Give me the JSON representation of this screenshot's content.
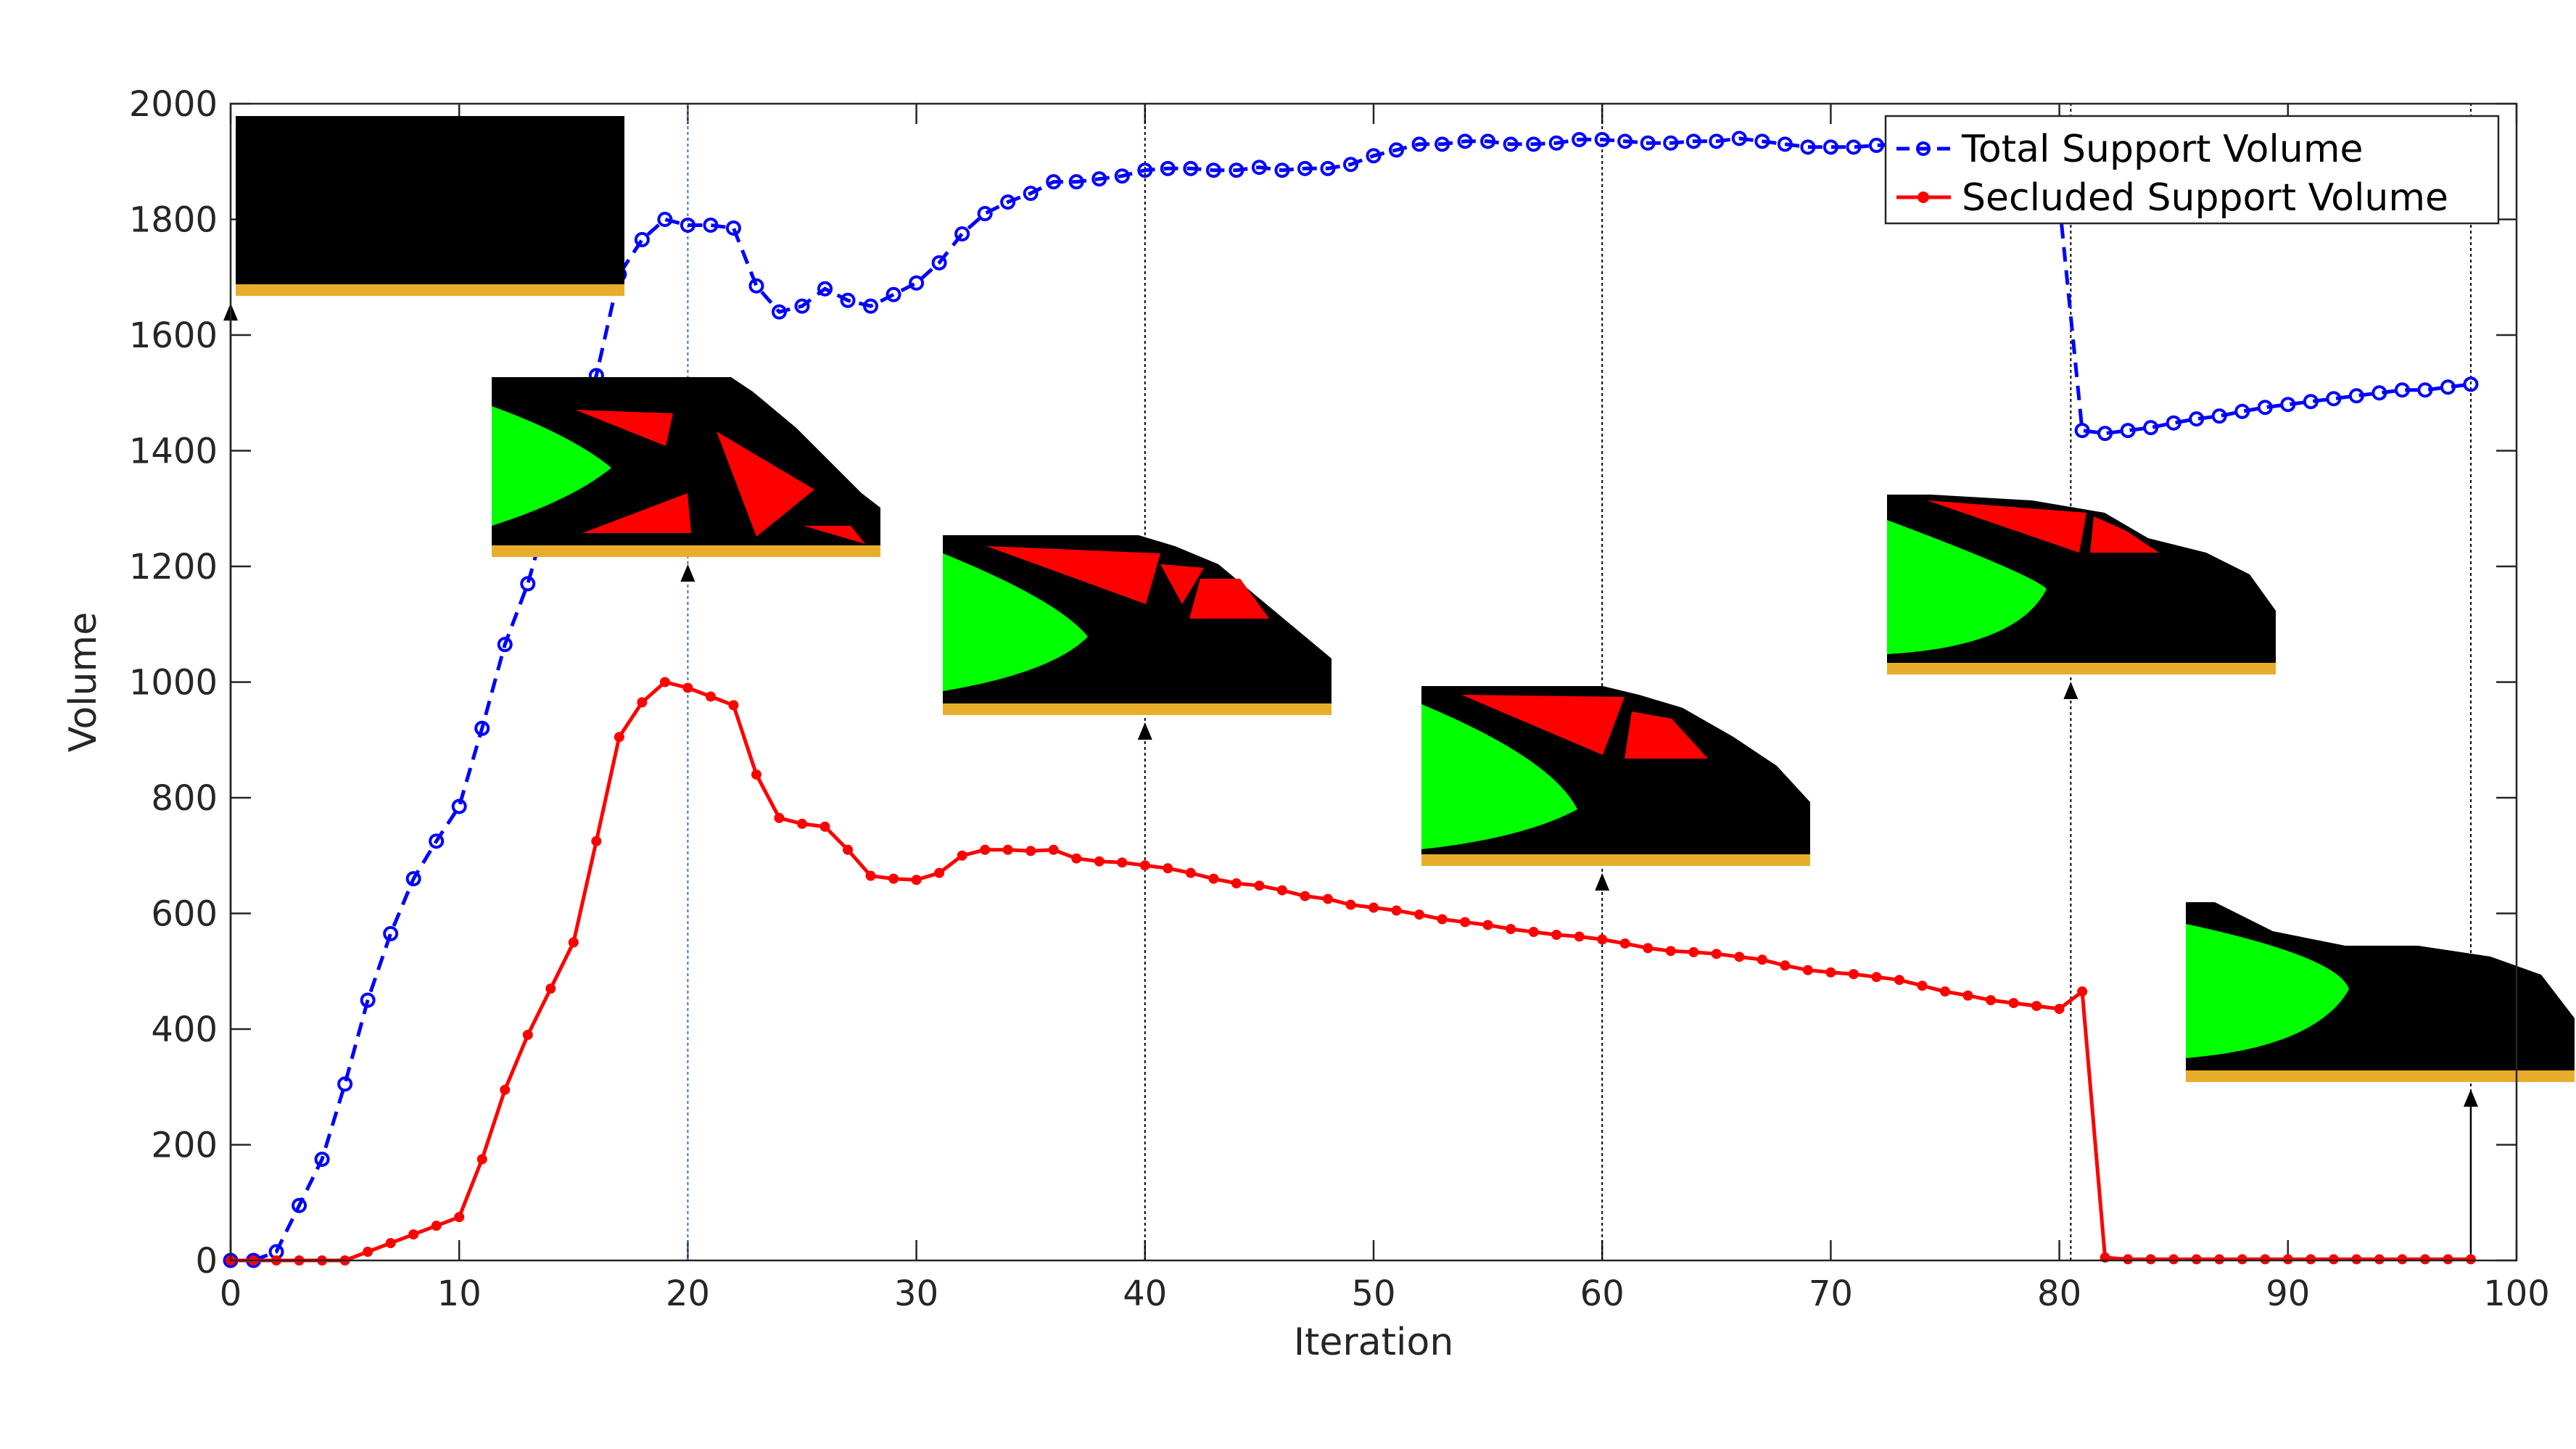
{
  "chart_data": {
    "type": "line",
    "title": "",
    "xlabel": "Iteration",
    "ylabel": "Volume",
    "xlim": [
      0,
      100
    ],
    "ylim": [
      0,
      2000
    ],
    "xticks": [
      "0",
      "10",
      "20",
      "30",
      "40",
      "50",
      "60",
      "70",
      "80",
      "90",
      "100"
    ],
    "yticks": [
      "0",
      "200",
      "400",
      "600",
      "800",
      "1000",
      "1200",
      "1400",
      "1600",
      "1800",
      "2000"
    ],
    "grid": false,
    "legend_position": "top-right",
    "series": [
      {
        "name": "Total Support Volume",
        "color": "#0000ff",
        "style": "dashed",
        "marker": "circle-open",
        "x": [
          0,
          1,
          2,
          3,
          4,
          5,
          6,
          7,
          8,
          9,
          10,
          11,
          12,
          13,
          14,
          15,
          16,
          17,
          18,
          19,
          20,
          21,
          22,
          23,
          24,
          25,
          26,
          27,
          28,
          29,
          30,
          31,
          32,
          33,
          34,
          35,
          36,
          37,
          38,
          39,
          40,
          41,
          42,
          43,
          44,
          45,
          46,
          47,
          48,
          49,
          50,
          51,
          52,
          53,
          54,
          55,
          56,
          57,
          58,
          59,
          60,
          61,
          62,
          63,
          64,
          65,
          66,
          67,
          68,
          69,
          70,
          71,
          72,
          73,
          74,
          75,
          76,
          77,
          78,
          79,
          80,
          81,
          82,
          83,
          84,
          85,
          86,
          87,
          88,
          89,
          90,
          91,
          92,
          93,
          94,
          95,
          96,
          97,
          98
        ],
        "y": [
          0,
          0,
          15,
          95,
          175,
          305,
          450,
          565,
          660,
          725,
          785,
          920,
          1065,
          1170,
          1310,
          1440,
          1530,
          1705,
          1765,
          1800,
          1790,
          1790,
          1785,
          1685,
          1640,
          1650,
          1680,
          1660,
          1650,
          1670,
          1690,
          1725,
          1775,
          1810,
          1830,
          1845,
          1865,
          1865,
          1870,
          1875,
          1885,
          1888,
          1888,
          1885,
          1885,
          1890,
          1885,
          1888,
          1888,
          1895,
          1910,
          1920,
          1930,
          1930,
          1935,
          1935,
          1930,
          1930,
          1932,
          1938,
          1938,
          1935,
          1932,
          1932,
          1935,
          1935,
          1940,
          1935,
          1930,
          1925,
          1925,
          1925,
          1928,
          1930,
          1930,
          1930,
          1930,
          1930,
          1930,
          1880,
          1830,
          1435,
          1430,
          1435,
          1440,
          1448,
          1455,
          1460,
          1468,
          1475,
          1480,
          1485,
          1490,
          1495,
          1500,
          1505,
          1505,
          1510,
          1515
        ]
      },
      {
        "name": "Secluded Support Volume",
        "color": "#ff0000",
        "style": "solid",
        "marker": "dot-filled",
        "x": [
          0,
          1,
          2,
          3,
          4,
          5,
          6,
          7,
          8,
          9,
          10,
          11,
          12,
          13,
          14,
          15,
          16,
          17,
          18,
          19,
          20,
          21,
          22,
          23,
          24,
          25,
          26,
          27,
          28,
          29,
          30,
          31,
          32,
          33,
          34,
          35,
          36,
          37,
          38,
          39,
          40,
          41,
          42,
          43,
          44,
          45,
          46,
          47,
          48,
          49,
          50,
          51,
          52,
          53,
          54,
          55,
          56,
          57,
          58,
          59,
          60,
          61,
          62,
          63,
          64,
          65,
          66,
          67,
          68,
          69,
          70,
          71,
          72,
          73,
          74,
          75,
          76,
          77,
          78,
          79,
          80,
          81,
          82,
          83,
          84,
          85,
          86,
          87,
          88,
          89,
          90,
          91,
          92,
          93,
          94,
          95,
          96,
          97,
          98
        ],
        "y": [
          0,
          0,
          0,
          0,
          0,
          0,
          15,
          30,
          45,
          60,
          75,
          175,
          295,
          390,
          470,
          550,
          725,
          905,
          965,
          1000,
          990,
          975,
          960,
          840,
          765,
          755,
          750,
          710,
          665,
          660,
          658,
          670,
          700,
          710,
          710,
          708,
          710,
          695,
          690,
          688,
          683,
          678,
          670,
          660,
          652,
          648,
          640,
          630,
          625,
          615,
          610,
          605,
          598,
          590,
          585,
          580,
          573,
          568,
          563,
          560,
          555,
          548,
          540,
          535,
          533,
          530,
          525,
          520,
          510,
          502,
          498,
          495,
          490,
          485,
          475,
          465,
          458,
          450,
          445,
          440,
          435,
          465,
          5,
          2,
          2,
          2,
          2,
          2,
          2,
          2,
          2,
          2,
          2,
          2,
          2,
          2,
          2,
          2,
          2
        ]
      }
    ],
    "insets": [
      {
        "at_x": 0,
        "anchor_y": 1640
      },
      {
        "at_x": 20,
        "anchor_y": 1175
      },
      {
        "at_x": 40,
        "anchor_y": 920
      },
      {
        "at_x": 60,
        "anchor_y": 655
      },
      {
        "at_x": 80.5,
        "anchor_y": 985
      },
      {
        "at_x": 98,
        "anchor_y": 285
      }
    ],
    "colors": {
      "axis": "#262626",
      "support_layer": "#e8ad2a",
      "solid_material": "#000000",
      "part_region": "#00ff00",
      "secluded_region": "#ff0000"
    }
  }
}
